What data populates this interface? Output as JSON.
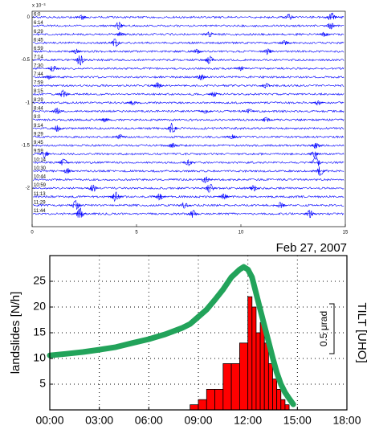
{
  "chart_data": [
    {
      "type": "seismogram",
      "color": "#0000ff",
      "exponent_label": "x 10⁻³",
      "xlim": [
        0,
        15
      ],
      "xticks": [
        0,
        5,
        10,
        15
      ],
      "ylim": [
        -2.45,
        0.07
      ],
      "yticks": [
        0,
        -0.5,
        -1,
        -1.5,
        -2
      ],
      "traces": [
        {
          "label": "6:0",
          "offset": 0,
          "bursts": [
            [
              2.4,
              0.03
            ],
            [
              12.3,
              0.04
            ],
            [
              14.35,
              0.06
            ]
          ]
        },
        {
          "label": "6:14",
          "offset": -0.1,
          "bursts": [
            [
              4.15,
              0.05
            ],
            [
              14.3,
              0.04
            ]
          ]
        },
        {
          "label": "6:29",
          "offset": -0.2,
          "bursts": [
            [
              4.2,
              0.03
            ],
            [
              8.5,
              0.03
            ],
            [
              14,
              0.03
            ]
          ]
        },
        {
          "label": "6:45",
          "offset": -0.3,
          "bursts": [
            [
              4,
              0.06
            ],
            [
              12.1,
              0.03
            ]
          ]
        },
        {
          "label": "6:59",
          "offset": -0.4,
          "bursts": [
            [
              2.1,
              0.03
            ],
            [
              7.9,
              0.03
            ],
            [
              11.3,
              0.04
            ]
          ]
        },
        {
          "label": "7:14",
          "offset": -0.5,
          "bursts": [
            [
              2.3,
              0.07
            ],
            [
              8.5,
              0.05
            ]
          ]
        },
        {
          "label": "7:30",
          "offset": -0.6,
          "bursts": [
            [
              1,
              0.04
            ],
            [
              10,
              0.03
            ]
          ]
        },
        {
          "label": "7:44",
          "offset": -0.7,
          "bursts": [
            [
              0.8,
              0.03
            ],
            [
              8.1,
              0.04
            ]
          ]
        },
        {
          "label": "7:59",
          "offset": -0.8,
          "bursts": [
            [
              6,
              0.04
            ],
            [
              11.2,
              0.03
            ]
          ]
        },
        {
          "label": "8:15",
          "offset": -0.9,
          "bursts": [
            [
              1.5,
              0.05
            ],
            [
              8.7,
              0.03
            ]
          ]
        },
        {
          "label": "8:29",
          "offset": -1,
          "bursts": [
            [
              4.8,
              0.03
            ],
            [
              13.7,
              0.03
            ]
          ]
        },
        {
          "label": "8:44",
          "offset": -1.1,
          "bursts": [
            [
              1.2,
              0.04
            ],
            [
              8.3,
              0.03
            ],
            [
              10.4,
              0.03
            ]
          ]
        },
        {
          "label": "9:0",
          "offset": -1.2,
          "bursts": [
            [
              3.5,
              0.03
            ],
            [
              11.2,
              0.03
            ]
          ]
        },
        {
          "label": "9:14",
          "offset": -1.3,
          "bursts": [
            [
              1.2,
              0.04
            ],
            [
              6.7,
              0.07
            ]
          ]
        },
        {
          "label": "9:29",
          "offset": -1.4,
          "bursts": [
            [
              4.2,
              0.03
            ],
            [
              9.6,
              0.03
            ]
          ]
        },
        {
          "label": "9:45",
          "offset": -1.5,
          "bursts": [
            [
              6.7,
              0.04
            ],
            [
              13.6,
              0.04
            ]
          ]
        },
        {
          "label": "9:59",
          "offset": -1.6,
          "bursts": [
            [
              0.6,
              0.05
            ],
            [
              13.5,
              0.05
            ]
          ]
        },
        {
          "label": "10:14",
          "offset": -1.7,
          "bursts": [
            [
              1.5,
              0.05
            ],
            [
              7.5,
              0.04
            ],
            [
              13.6,
              0.07
            ]
          ]
        },
        {
          "label": "10:30",
          "offset": -1.8,
          "bursts": [
            [
              1.7,
              0.04
            ],
            [
              13.8,
              0.06
            ]
          ]
        },
        {
          "label": "10:44",
          "offset": -1.9,
          "bursts": [
            [
              8.3,
              0.04
            ]
          ]
        },
        {
          "label": "10:59",
          "offset": -2,
          "bursts": [
            [
              2.9,
              0.05
            ],
            [
              8.5,
              0.06
            ],
            [
              10.6,
              0.04
            ]
          ]
        },
        {
          "label": "11:13",
          "offset": -2.1,
          "bursts": [
            [
              4,
              0.06
            ],
            [
              6.1,
              0.04
            ],
            [
              9.2,
              0.04
            ]
          ]
        },
        {
          "label": "11:29",
          "offset": -2.2,
          "bursts": [
            [
              2.1,
              0.06
            ],
            [
              7.3,
              0.04
            ],
            [
              11.9,
              0.04
            ]
          ]
        },
        {
          "label": "11:44",
          "offset": -2.3,
          "bursts": [
            [
              2.3,
              0.07
            ],
            [
              7.7,
              0.05
            ],
            [
              13.3,
              0.05
            ]
          ]
        }
      ]
    },
    {
      "type": "histogram",
      "title": "Feb 27, 2007",
      "ylabel": "landslides [N/h]",
      "y2label": "TILT [UHO]",
      "scale_label": "0.5 μrad",
      "color": "#ff0000",
      "grid": true,
      "xlim": [
        0,
        18
      ],
      "ylim": [
        0,
        30
      ],
      "xticks": [
        {
          "value": 0,
          "label": "00:00"
        },
        {
          "value": 3,
          "label": "03:00"
        },
        {
          "value": 6,
          "label": "06:00"
        },
        {
          "value": 9,
          "label": "09:00"
        },
        {
          "value": 12,
          "label": "12:00"
        },
        {
          "value": 15,
          "label": "15:00"
        },
        {
          "value": 18,
          "label": "18:00"
        }
      ],
      "yticks": [
        5,
        10,
        15,
        20,
        25
      ],
      "bins": [
        8.5,
        9,
        9.5,
        10,
        10.5,
        11,
        11.5,
        12,
        12.25,
        12.5,
        12.75,
        13,
        13.25,
        13.5,
        13.75,
        14,
        14.25,
        14.5
      ],
      "values": [
        1,
        2,
        4,
        4,
        9,
        9,
        13,
        22,
        20,
        15,
        17,
        13,
        9,
        6,
        4,
        2,
        1
      ],
      "line": {
        "color": "#22a35a",
        "x": [
          0,
          1,
          2,
          3,
          4,
          5,
          6,
          7,
          8,
          8.5,
          9,
          9.5,
          10,
          10.5,
          11,
          11.5,
          11.75,
          12,
          12.25,
          12.5,
          12.75,
          13,
          13.25,
          13.5,
          13.75,
          14,
          14.25,
          14.5,
          14.75
        ],
        "values": [
          10.6,
          10.9,
          11.25,
          11.7,
          12.2,
          13,
          13.75,
          14.7,
          15.9,
          16.7,
          18.1,
          19.5,
          21.4,
          23.4,
          25.8,
          27.3,
          27.8,
          27.3,
          25.8,
          22.7,
          19.5,
          16.4,
          13.3,
          10.2,
          7.3,
          5,
          3.4,
          2.2,
          1.1
        ]
      }
    }
  ]
}
